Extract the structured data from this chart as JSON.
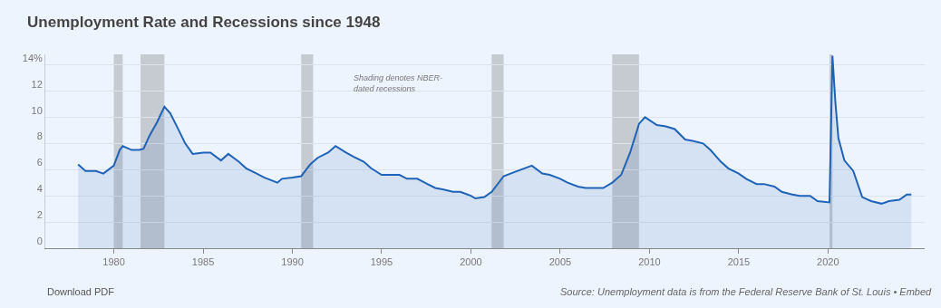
{
  "chart_data": {
    "type": "area",
    "title": "Unemployment Rate and Recessions since 1948",
    "annotations": [
      "Shading denotes NBER-\ndated recessions",
      "Download PDF",
      "Source: Unemployment data is from the Federal Reserve Bank of St. Louis • Embed"
    ],
    "x": [
      "1978-01",
      "1978-06",
      "1979-01",
      "1979-06",
      "1980-01",
      "1980-05",
      "1980-07",
      "1981-01",
      "1981-06",
      "1981-09",
      "1982-01",
      "1982-06",
      "1982-11",
      "1983-03",
      "1983-07",
      "1984-01",
      "1984-06",
      "1985-01",
      "1985-06",
      "1986-01",
      "1986-06",
      "1987-01",
      "1987-06",
      "1988-01",
      "1988-06",
      "1989-03",
      "1989-06",
      "1990-01",
      "1990-07",
      "1991-01",
      "1991-06",
      "1992-01",
      "1992-06",
      "1993-01",
      "1993-06",
      "1994-01",
      "1994-06",
      "1995-01",
      "1995-06",
      "1996-01",
      "1996-06",
      "1997-01",
      "1997-06",
      "1998-01",
      "1998-06",
      "1999-01",
      "1999-06",
      "2000-01",
      "2000-04",
      "2000-10",
      "2001-03",
      "2001-11",
      "2002-06",
      "2003-06",
      "2004-01",
      "2004-06",
      "2005-01",
      "2005-06",
      "2006-01",
      "2006-06",
      "2007-01",
      "2007-06",
      "2007-12",
      "2008-06",
      "2008-12",
      "2009-06",
      "2009-10",
      "2010-06",
      "2010-12",
      "2011-06",
      "2012-01",
      "2012-06",
      "2013-01",
      "2013-06",
      "2014-01",
      "2014-06",
      "2015-01",
      "2015-06",
      "2016-01",
      "2016-06",
      "2017-01",
      "2017-06",
      "2018-01",
      "2018-06",
      "2019-01",
      "2019-06",
      "2020-02",
      "2020-04",
      "2020-06",
      "2020-08",
      "2020-12",
      "2021-06",
      "2021-12",
      "2022-06",
      "2023-01",
      "2023-06",
      "2024-01",
      "2024-06",
      "2024-09"
    ],
    "series": [
      {
        "color": "#1f63b8",
        "values": [
          6.4,
          5.9,
          5.9,
          5.7,
          6.3,
          7.5,
          7.8,
          7.5,
          7.5,
          7.6,
          8.6,
          9.6,
          10.8,
          10.3,
          9.4,
          8.0,
          7.2,
          7.3,
          7.3,
          6.7,
          7.2,
          6.6,
          6.1,
          5.7,
          5.4,
          5.0,
          5.3,
          5.4,
          5.5,
          6.4,
          6.9,
          7.3,
          7.8,
          7.3,
          7.0,
          6.6,
          6.1,
          5.6,
          5.6,
          5.6,
          5.3,
          5.3,
          5.0,
          4.6,
          4.5,
          4.3,
          4.3,
          4.0,
          3.8,
          3.9,
          4.3,
          5.5,
          5.8,
          6.3,
          5.7,
          5.6,
          5.3,
          5.0,
          4.7,
          4.6,
          4.6,
          4.6,
          5.0,
          5.6,
          7.3,
          9.5,
          10.0,
          9.4,
          9.3,
          9.1,
          8.3,
          8.2,
          8.0,
          7.5,
          6.6,
          6.1,
          5.7,
          5.3,
          4.9,
          4.9,
          4.7,
          4.3,
          4.1,
          4.0,
          4.0,
          3.6,
          3.5,
          14.7,
          11.1,
          8.4,
          6.7,
          5.9,
          3.9,
          3.6,
          3.4,
          3.6,
          3.7,
          4.1,
          4.1
        ]
      }
    ],
    "xlim": [
      "1976-03",
      "2025-06"
    ],
    "xticks": [
      {
        "value": "1980-01-01",
        "label": "1980"
      },
      {
        "value": "1985-01-01",
        "label": "1985"
      },
      {
        "value": "1990-01-01",
        "label": "1990"
      },
      {
        "value": "1995-01-01",
        "label": "1995"
      },
      {
        "value": "2000-01-01",
        "label": "2000"
      },
      {
        "value": "2005-01-01",
        "label": "2005"
      },
      {
        "value": "2010-01-01",
        "label": "2010"
      },
      {
        "value": "2015-01-01",
        "label": "2015"
      },
      {
        "value": "2020-01-01",
        "label": "2020"
      }
    ],
    "ylim": [
      0,
      14.8
    ],
    "yticks": [
      0,
      2,
      4,
      6,
      8,
      10,
      12,
      {
        "value": 14,
        "label": "14%"
      }
    ],
    "bands": [
      {
        "axis": "x",
        "from": "1980-01",
        "to": "1980-07",
        "color": "#c6cad1"
      },
      {
        "axis": "x",
        "from": "1981-07",
        "to": "1982-11",
        "color": "#c6cad1"
      },
      {
        "axis": "x",
        "from": "1990-07",
        "to": "1991-03",
        "color": "#c6cad1"
      },
      {
        "axis": "x",
        "from": "2001-03",
        "to": "2001-11",
        "color": "#c6cad1"
      },
      {
        "axis": "x",
        "from": "2007-12",
        "to": "2009-06",
        "color": "#c6cad1"
      },
      {
        "axis": "x",
        "from": "2020-02",
        "to": "2020-04",
        "color": "#c6cad1"
      }
    ],
    "grid": "y",
    "marker": "none",
    "line_style": "solid"
  }
}
